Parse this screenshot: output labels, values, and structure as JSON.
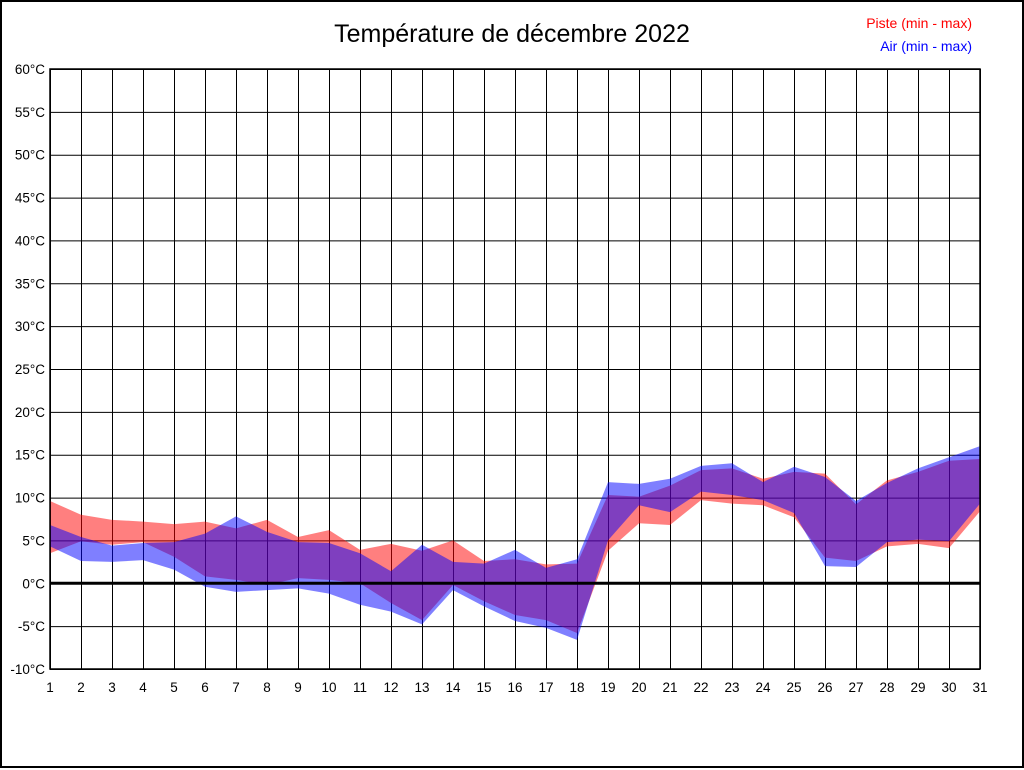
{
  "title": "Température de décembre 2022",
  "legend": {
    "piste_label": "Piste (min - max)",
    "air_label": "Air (min - max)"
  },
  "chart_data": {
    "type": "area",
    "title": "Température de décembre 2022",
    "xlabel": "",
    "ylabel": "",
    "x": [
      1,
      2,
      3,
      4,
      5,
      6,
      7,
      8,
      9,
      10,
      11,
      12,
      13,
      14,
      15,
      16,
      17,
      18,
      19,
      20,
      21,
      22,
      23,
      24,
      25,
      26,
      27,
      28,
      29,
      30,
      31
    ],
    "xlim": [
      1,
      31
    ],
    "ylim": [
      -10,
      60
    ],
    "ytick_step": 5,
    "ytick_suffix": "°C",
    "grid": true,
    "zero_line_bold": true,
    "legend_position": "top-right",
    "series": [
      {
        "name": "Piste (min - max)",
        "color": "#ff0000",
        "opacity": 0.5,
        "min": [
          3.5,
          4.9,
          4.5,
          4.8,
          3.1,
          0.8,
          0.4,
          -0.2,
          0.6,
          0.4,
          0.0,
          -2.3,
          -4.3,
          -0.2,
          -2.1,
          -3.7,
          -4.3,
          -5.8,
          3.8,
          7.0,
          6.8,
          9.7,
          9.3,
          9.1,
          7.7,
          3.0,
          2.6,
          4.3,
          4.6,
          4.1,
          8.4
        ],
        "max": [
          9.6,
          8.0,
          7.4,
          7.2,
          6.9,
          7.2,
          6.4,
          7.4,
          5.4,
          6.2,
          3.9,
          4.6,
          3.8,
          5.0,
          2.6,
          2.8,
          2.2,
          2.3,
          10.3,
          10.1,
          11.4,
          13.2,
          13.4,
          12.2,
          13.0,
          12.8,
          9.2,
          12.0,
          13.0,
          14.3,
          14.5
        ]
      },
      {
        "name": "Air (min - max)",
        "color": "#0000ff",
        "opacity": 0.5,
        "min": [
          4.3,
          2.6,
          2.5,
          2.7,
          1.6,
          -0.4,
          -1.0,
          -0.8,
          -0.6,
          -1.2,
          -2.5,
          -3.3,
          -4.8,
          -0.8,
          -2.7,
          -4.4,
          -5.2,
          -6.6,
          5.0,
          9.1,
          8.3,
          10.7,
          10.3,
          9.7,
          8.2,
          2.0,
          1.9,
          4.8,
          5.1,
          4.9,
          9.3
        ],
        "max": [
          6.8,
          5.4,
          4.4,
          4.7,
          4.8,
          5.8,
          7.8,
          6.0,
          4.8,
          4.7,
          3.5,
          1.4,
          4.5,
          2.5,
          2.3,
          3.9,
          1.8,
          2.8,
          11.8,
          11.6,
          12.2,
          13.7,
          14.0,
          11.8,
          13.6,
          12.4,
          9.6,
          11.7,
          13.4,
          14.7,
          16.0
        ]
      }
    ]
  }
}
